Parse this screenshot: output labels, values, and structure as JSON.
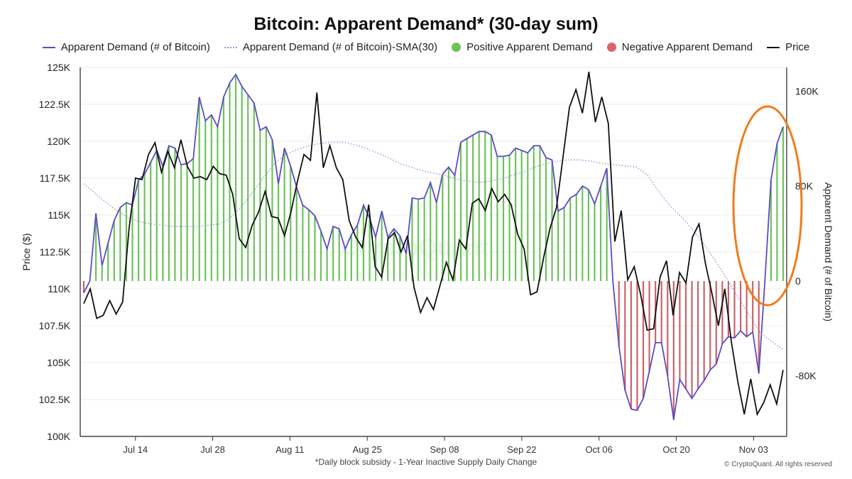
{
  "title": "Bitcoin: Apparent Demand* (30-day sum)",
  "legend": [
    {
      "label": "Apparent Demand (# of Bitcoin)",
      "kind": "line",
      "color": "#5b4cc4"
    },
    {
      "label": "Apparent Demand (# of Bitcoin)-SMA(30)",
      "kind": "dotted",
      "color": "#9b8fd6"
    },
    {
      "label": "Positive Apparent Demand",
      "kind": "dot",
      "color": "#6cc35a"
    },
    {
      "label": "Negative Apparent Demand",
      "kind": "dot",
      "color": "#d9646a"
    },
    {
      "label": "Price",
      "kind": "line",
      "color": "#111111"
    }
  ],
  "footnote": "*Daily block subsidy - 1-Year Inactive Supply Daily Change",
  "copyright": "© CryptoQuant. All rights reserved",
  "watermark": "CryptoQuant",
  "annotation": {
    "shape": "ellipse",
    "color": "#f07c1c"
  },
  "chart_data": {
    "type": "line",
    "x_start": "2025-07-04",
    "x_end": "2025-11-09",
    "x_ticks": [
      "Jul 14",
      "Jul 28",
      "Aug 11",
      "Aug 25",
      "Sep 08",
      "Sep 22",
      "Oct 06",
      "Oct 20",
      "Nov 03"
    ],
    "y_left": {
      "label": "Price ($)",
      "ylim": [
        100000,
        125000
      ],
      "ticks": [
        "125K",
        "122.5K",
        "120K",
        "117.5K",
        "115K",
        "112.5K",
        "110K",
        "107.5K",
        "105K",
        "102.5K",
        "100K"
      ]
    },
    "y_right": {
      "label": "Apparent Demand (# of Bitcoin)",
      "ylim": [
        -131000,
        180000
      ],
      "ticks": [
        "160K",
        "80K",
        "0",
        "-80K"
      ]
    },
    "series": [
      {
        "name": "Apparent Demand (# of Bitcoin)",
        "axis": "right",
        "values": [
          -10000,
          0,
          57000,
          13000,
          32000,
          51000,
          62000,
          66000,
          64000,
          85000,
          90000,
          100000,
          110000,
          97000,
          114000,
          112000,
          98000,
          99000,
          103000,
          155000,
          135000,
          140000,
          130000,
          155000,
          167000,
          174000,
          164000,
          157000,
          150000,
          127000,
          130000,
          119000,
          82000,
          112000,
          97000,
          79000,
          64000,
          60000,
          55000,
          42000,
          27000,
          46000,
          44000,
          27000,
          39000,
          47000,
          64000,
          53000,
          37000,
          59000,
          37000,
          44000,
          38000,
          23000,
          70000,
          69000,
          70000,
          83000,
          66000,
          90000,
          96000,
          89000,
          117000,
          120000,
          123000,
          126000,
          126000,
          123000,
          105000,
          105000,
          106000,
          112000,
          110000,
          108000,
          114000,
          114000,
          104000,
          102000,
          59000,
          62000,
          70000,
          73000,
          80000,
          77000,
          65000,
          80000,
          95000,
          0,
          -55000,
          -92000,
          -108000,
          -109000,
          -99000,
          -76000,
          -52000,
          -52000,
          -80000,
          -117000,
          -83000,
          -91000,
          -99000,
          -91000,
          -84000,
          -75000,
          -70000,
          -53000,
          -47000,
          -48000,
          -42000,
          -47000,
          -43000,
          -78000,
          0,
          85000,
          116000,
          130000
        ]
      },
      {
        "name": "Apparent Demand (# of Bitcoin)-SMA(30)",
        "axis": "right",
        "values": [
          82000,
          74000,
          66000,
          59000,
          53000,
          50000,
          48000,
          47000,
          46000,
          46000,
          46000,
          47000,
          48000,
          53000,
          63000,
          75000,
          88000,
          100000,
          107000,
          111000,
          114000,
          116000,
          117000,
          117000,
          115000,
          112000,
          108000,
          104000,
          99000,
          96000,
          93000,
          91000,
          89000,
          86000,
          84000,
          83000,
          84000,
          86000,
          89000,
          92000,
          96000,
          99000,
          101000,
          102000,
          102000,
          101000,
          99000,
          98000,
          97000,
          96000,
          89000,
          75000,
          63000,
          54000,
          43000,
          31000,
          17000,
          2000,
          -14000,
          -29000,
          -44000,
          -51000,
          -58000
        ]
      },
      {
        "name": "Price",
        "axis": "left",
        "values": [
          109000,
          110000,
          108000,
          108200,
          109200,
          108300,
          109100,
          114100,
          117500,
          117400,
          119100,
          119900,
          117900,
          119300,
          118200,
          120100,
          118300,
          117500,
          117600,
          117400,
          118300,
          117800,
          117700,
          116400,
          113400,
          112800,
          114300,
          115200,
          116600,
          114900,
          114800,
          113600,
          115200,
          117300,
          119100,
          118700,
          123300,
          118200,
          119700,
          118200,
          117400,
          114600,
          113500,
          112800,
          115700,
          111500,
          110800,
          113400,
          113800,
          112500,
          113600,
          110100,
          108400,
          109400,
          108600,
          110200,
          111800,
          110600,
          113300,
          112700,
          115800,
          116100,
          115300,
          116800,
          115900,
          116400,
          115700,
          113700,
          112700,
          109600,
          109800,
          112100,
          114100,
          115500,
          118900,
          122300,
          123500,
          121900,
          124700,
          121300,
          123000,
          121200,
          113200,
          115300,
          110600,
          111500,
          109600,
          107200,
          107300,
          110800,
          111900,
          108200,
          111100,
          110400,
          113500,
          114400,
          111700,
          109700,
          107500,
          110000,
          106400,
          103700,
          101500,
          103900,
          101500,
          102300,
          103500,
          102200,
          104500
        ]
      }
    ]
  }
}
